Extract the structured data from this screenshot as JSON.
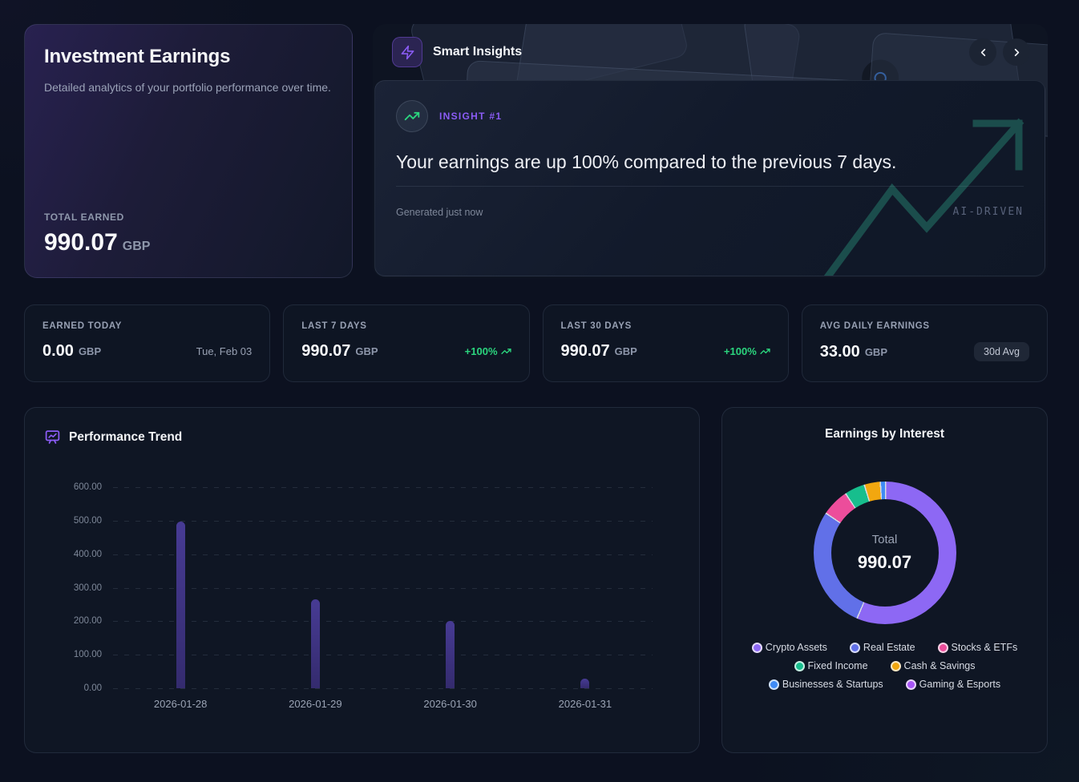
{
  "hero": {
    "title": "Investment Earnings",
    "subtitle": "Detailed analytics of your portfolio performance over time.",
    "total_label": "TOTAL EARNED",
    "total_value": "990.07",
    "currency": "GBP"
  },
  "insights": {
    "title": "Smart Insights",
    "badge": "INSIGHT #1",
    "headline": "Your earnings are up 100% compared to the previous 7 days.",
    "generated": "Generated just now",
    "tag": "AI-DRIVEN"
  },
  "stats": [
    {
      "label": "EARNED TODAY",
      "value": "0.00",
      "currency": "GBP",
      "meta": "Tue, Feb 03",
      "meta_type": "date"
    },
    {
      "label": "LAST 7 DAYS",
      "value": "990.07",
      "currency": "GBP",
      "meta": "+100%",
      "meta_type": "trend"
    },
    {
      "label": "LAST 30 DAYS",
      "value": "990.07",
      "currency": "GBP",
      "meta": "+100%",
      "meta_type": "trend"
    },
    {
      "label": "AVG DAILY EARNINGS",
      "value": "33.00",
      "currency": "GBP",
      "meta": "30d Avg",
      "meta_type": "badge"
    }
  ],
  "icons": {
    "insights_header": "lightning-bolt",
    "insight_item": "trending-up",
    "performance": "presentation-chart",
    "nav_prev": "chevron-left",
    "nav_next": "chevron-right",
    "watermark": "trending-up"
  },
  "colors": {
    "accent_purple": "#8b5cf6",
    "trend_green": "#2bd57e",
    "bar_purple": "#473b94",
    "watermark_teal": "#1d5350"
  },
  "chart_data": [
    {
      "type": "bar",
      "title": "Performance Trend",
      "categories": [
        "2026-01-28",
        "2026-01-29",
        "2026-01-30",
        "2026-01-31"
      ],
      "values": [
        497.04,
        265.0,
        200.0,
        28.03
      ],
      "ylim": [
        0,
        600
      ],
      "ytick_step": 100,
      "ytick_format_decimals": 2,
      "grid": "dashed-horizontal",
      "bar_color": "#473b94",
      "xlabel": "",
      "ylabel": ""
    },
    {
      "type": "pie",
      "subtype": "donut",
      "title": "Earnings by Interest",
      "center_label": "Total",
      "center_value": "990.07",
      "legend_position": "bottom",
      "segments": [
        {
          "label": "Crypto Assets",
          "value": 557.07,
          "color": "#8d68f4"
        },
        {
          "label": "Real Estate",
          "value": 277.0,
          "color": "#6170e8"
        },
        {
          "label": "Stocks & ETFs",
          "value": 62.0,
          "color": "#ec4d9b"
        },
        {
          "label": "Fixed Income",
          "value": 46.0,
          "color": "#17be8d"
        },
        {
          "label": "Cash & Savings",
          "value": 36.0,
          "color": "#f2a70f"
        },
        {
          "label": "Businesses & Startups",
          "value": 12.0,
          "color": "#3e8bf6"
        },
        {
          "label": "Gaming & Esports",
          "value": 0.0,
          "color": "#a855f7"
        }
      ]
    }
  ]
}
